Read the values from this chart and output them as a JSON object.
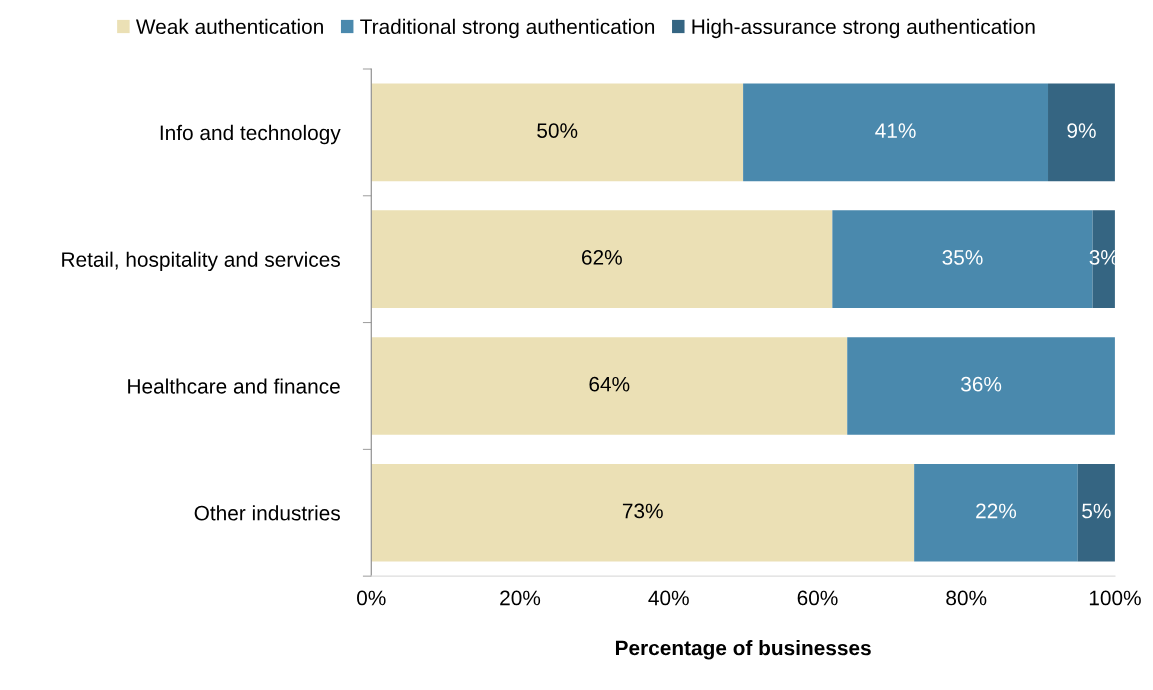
{
  "chart_data": {
    "type": "bar",
    "orientation": "horizontal",
    "stacked": true,
    "categories": [
      "Info and technology",
      "Retail, hospitality and services",
      "Healthcare and finance",
      "Other industries"
    ],
    "series": [
      {
        "name": "Weak authentication",
        "color": "#ebe0b5",
        "values": [
          50,
          62,
          64,
          73
        ],
        "value_labels": [
          "50%",
          "62%",
          "64%",
          "73%"
        ]
      },
      {
        "name": "Traditional strong authentication",
        "color": "#4a89ad",
        "values": [
          41,
          35,
          36,
          22
        ],
        "value_labels": [
          "41%",
          "35%",
          "36%",
          "22%"
        ]
      },
      {
        "name": "High-assurance strong authentication",
        "color": "#356582",
        "values": [
          9,
          3,
          null,
          5
        ],
        "value_labels": [
          "9%",
          "3%",
          null,
          "5%"
        ]
      }
    ],
    "xlim": [
      0,
      100
    ],
    "xticks": [
      {
        "value": 0,
        "label": "0%"
      },
      {
        "value": 20,
        "label": "20%"
      },
      {
        "value": 40,
        "label": "40%"
      },
      {
        "value": 60,
        "label": "60%"
      },
      {
        "value": 80,
        "label": "80%"
      },
      {
        "value": 100,
        "label": "100%"
      }
    ],
    "xlabel": "Percentage of businesses",
    "legend": "top",
    "grid": false
  }
}
